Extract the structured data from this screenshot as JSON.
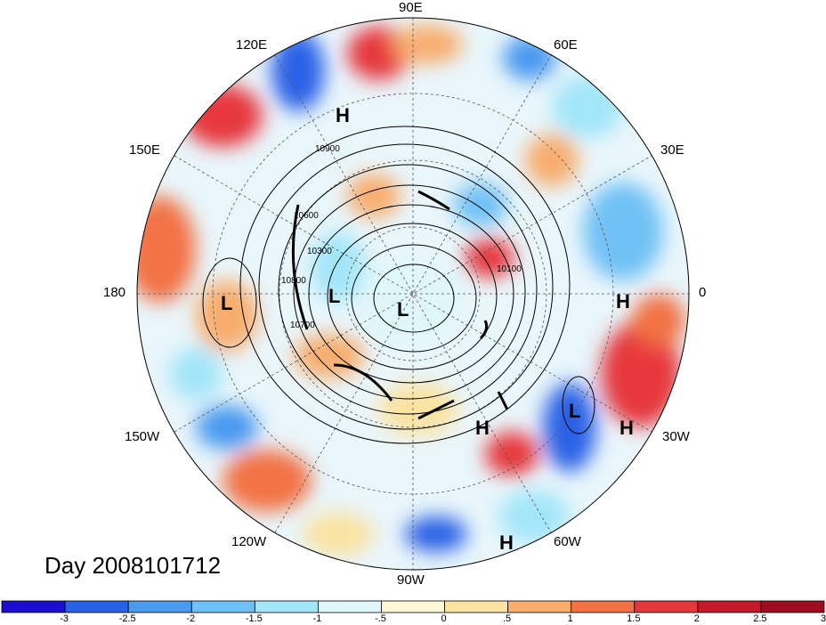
{
  "day_label": "Day 2008101712",
  "longitude_labels": {
    "e90": "90E",
    "e120": "120E",
    "e60": "60E",
    "e150": "150E",
    "e30": "30E",
    "w180": "180",
    "e0": "0",
    "w150": "150W",
    "w30": "30W",
    "w120": "120W",
    "w60": "60W",
    "w90": "90W"
  },
  "pressure_markers": {
    "h1": "H",
    "h2": "H",
    "h3": "H",
    "h4": "H",
    "h5": "H",
    "l1": "L",
    "l2": "L",
    "l3": "L",
    "l4": "L"
  },
  "contour_labels": [
    "10900",
    "10600",
    "10300",
    "10800",
    "10700",
    "10100"
  ],
  "colorbar": {
    "colors": [
      "#1a0fd0",
      "#2a62e6",
      "#4a9af0",
      "#6fc1f5",
      "#a3e6f9",
      "#dff7fb",
      "#fff8d6",
      "#fbe3a2",
      "#f8ad6e",
      "#f27245",
      "#e6383c",
      "#c5182a",
      "#9e0d1f"
    ],
    "labels": [
      "-3",
      "-2.5",
      "-2",
      "-1.5",
      "-1",
      "-.5",
      "0",
      ".5",
      "1",
      "1.5",
      "2",
      "2.5",
      "3"
    ]
  }
}
